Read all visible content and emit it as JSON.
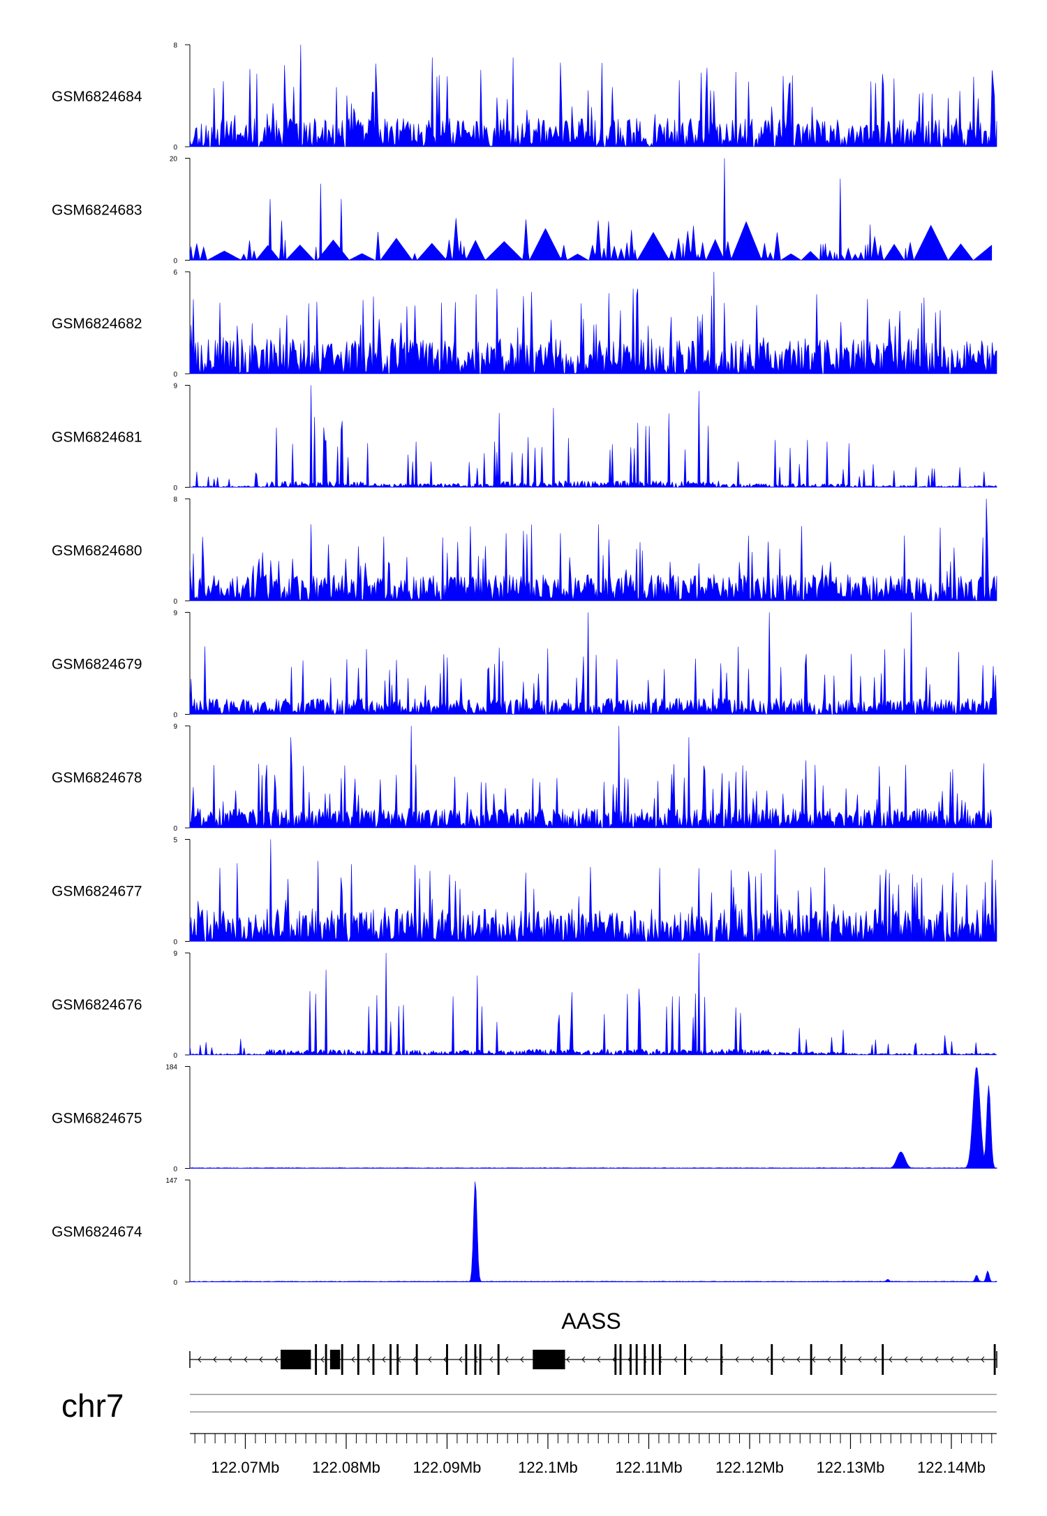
{
  "chart_data": {
    "type": "area",
    "title": "",
    "gene": {
      "name": "AASS",
      "strand": "-",
      "start": 122.0645,
      "end": 122.1445,
      "exons": [
        {
          "start": 122.0735,
          "end": 122.0765
        },
        {
          "start": 122.0769,
          "end": 122.0771
        },
        {
          "start": 122.0779,
          "end": 122.0781
        },
        {
          "start": 122.0784,
          "end": 122.0794
        },
        {
          "start": 122.0795,
          "end": 122.0797
        },
        {
          "start": 122.0811,
          "end": 122.0813
        },
        {
          "start": 122.0826,
          "end": 122.0828
        },
        {
          "start": 122.0843,
          "end": 122.0845
        },
        {
          "start": 122.085,
          "end": 122.0852
        },
        {
          "start": 122.0869,
          "end": 122.0871
        },
        {
          "start": 122.0899,
          "end": 122.0901
        },
        {
          "start": 122.0918,
          "end": 122.092
        },
        {
          "start": 122.0927,
          "end": 122.0929
        },
        {
          "start": 122.0932,
          "end": 122.0934
        },
        {
          "start": 122.095,
          "end": 122.0952
        },
        {
          "start": 122.0985,
          "end": 122.1017
        },
        {
          "start": 122.1066,
          "end": 122.1068
        },
        {
          "start": 122.1071,
          "end": 122.1073
        },
        {
          "start": 122.1081,
          "end": 122.1083
        },
        {
          "start": 122.1087,
          "end": 122.1089
        },
        {
          "start": 122.1095,
          "end": 122.1097
        },
        {
          "start": 122.1103,
          "end": 122.1105
        },
        {
          "start": 122.111,
          "end": 122.1112
        },
        {
          "start": 122.1135,
          "end": 122.1137
        },
        {
          "start": 122.1171,
          "end": 122.1173
        },
        {
          "start": 122.1221,
          "end": 122.1223
        },
        {
          "start": 122.126,
          "end": 122.1262
        },
        {
          "start": 122.129,
          "end": 122.1292
        },
        {
          "start": 122.1331,
          "end": 122.1333
        },
        {
          "start": 122.1442,
          "end": 122.1444
        }
      ]
    },
    "chromosome": "chr7",
    "x_range": [
      122.0645,
      122.1445
    ],
    "x_unit": "Mb",
    "x_ticks": [
      122.07,
      122.08,
      122.09,
      122.1,
      122.11,
      122.12,
      122.13,
      122.14
    ],
    "x_tick_labels": [
      "122.07Mb",
      "122.08Mb",
      "122.09Mb",
      "122.1Mb",
      "122.11Mb",
      "122.12Mb",
      "122.13Mb",
      "122.14Mb"
    ],
    "minor_tick_step": 0.001,
    "color": "#0000ff",
    "tracks": [
      {
        "name": "GSM6824684",
        "ymax": 8,
        "ymin": 0,
        "pattern": "noise",
        "seed": 11,
        "base": 1.4,
        "peak": 5.5,
        "extent": [
          122.0645,
          122.1445
        ],
        "peaks": [
          {
            "x": 122.0755,
            "h": 8
          },
          {
            "x": 122.0705,
            "h": 6.1
          },
          {
            "x": 122.0885,
            "h": 7.0
          },
          {
            "x": 122.0965,
            "h": 7.0
          },
          {
            "x": 122.1325,
            "h": 5.0
          },
          {
            "x": 122.144,
            "h": 6.0
          }
        ]
      },
      {
        "name": "GSM6824683",
        "ymax": 20,
        "ymin": 0,
        "pattern": "sparse",
        "seed": 23,
        "base": 2.2,
        "peak": 7,
        "extent": [
          122.0645,
          122.144
        ],
        "peaks": [
          {
            "x": 122.1175,
            "h": 20
          },
          {
            "x": 122.129,
            "h": 16
          },
          {
            "x": 122.0775,
            "h": 15
          },
          {
            "x": 122.0795,
            "h": 12
          },
          {
            "x": 122.0725,
            "h": 12
          }
        ]
      },
      {
        "name": "GSM6824682",
        "ymax": 6,
        "ymin": 0,
        "pattern": "noise",
        "seed": 37,
        "base": 1.3,
        "peak": 4.3,
        "extent": [
          122.0645,
          122.1445
        ],
        "peaks": [
          {
            "x": 122.1165,
            "h": 6
          },
          {
            "x": 122.1085,
            "h": 5
          },
          {
            "x": 122.095,
            "h": 5
          }
        ]
      },
      {
        "name": "GSM6824681",
        "ymax": 9,
        "ymin": 0,
        "pattern": "regional",
        "seed": 41,
        "base": 0.3,
        "peak": 5,
        "extent": [
          122.0645,
          122.1445
        ],
        "regions": [
          [
            122.0645,
            122.072,
            0.25
          ],
          [
            122.072,
            122.082,
            1.1
          ],
          [
            122.082,
            122.095,
            0.7
          ],
          [
            122.095,
            122.117,
            1.2
          ],
          [
            122.117,
            122.13,
            0.7
          ],
          [
            122.13,
            122.1445,
            0.35
          ]
        ],
        "peaks": [
          {
            "x": 122.0765,
            "h": 9
          },
          {
            "x": 122.115,
            "h": 8.5
          },
          {
            "x": 122.1005,
            "h": 7
          }
        ]
      },
      {
        "name": "GSM6824680",
        "ymax": 8,
        "ymin": 0,
        "pattern": "noise",
        "seed": 53,
        "base": 1.3,
        "peak": 5,
        "extent": [
          122.0645,
          122.1445
        ],
        "peaks": [
          {
            "x": 122.1435,
            "h": 8
          },
          {
            "x": 122.0765,
            "h": 6
          },
          {
            "x": 122.105,
            "h": 6
          }
        ]
      },
      {
        "name": "GSM6824679",
        "ymax": 9,
        "ymin": 0,
        "pattern": "noise",
        "seed": 61,
        "base": 0.9,
        "peak": 5,
        "extent": [
          122.0645,
          122.1445
        ],
        "peaks": [
          {
            "x": 122.122,
            "h": 9
          },
          {
            "x": 122.104,
            "h": 9
          },
          {
            "x": 122.136,
            "h": 9
          },
          {
            "x": 122.066,
            "h": 6
          }
        ]
      },
      {
        "name": "GSM6824678",
        "ymax": 9,
        "ymin": 0,
        "pattern": "noise",
        "seed": 71,
        "base": 1.1,
        "peak": 5,
        "extent": [
          122.0645,
          122.144
        ],
        "peaks": [
          {
            "x": 122.0865,
            "h": 9
          },
          {
            "x": 122.107,
            "h": 9
          },
          {
            "x": 122.0745,
            "h": 8
          },
          {
            "x": 122.114,
            "h": 8
          }
        ]
      },
      {
        "name": "GSM6824677",
        "ymax": 5,
        "ymin": 0,
        "pattern": "noise",
        "seed": 83,
        "base": 1.0,
        "peak": 3.3,
        "extent": [
          122.0645,
          122.1445
        ],
        "peaks": [
          {
            "x": 122.0725,
            "h": 5
          },
          {
            "x": 122.1225,
            "h": 4.5
          },
          {
            "x": 122.144,
            "h": 4
          }
        ]
      },
      {
        "name": "GSM6824676",
        "ymax": 9,
        "ymin": 0,
        "pattern": "regional",
        "seed": 97,
        "base": 0.3,
        "peak": 5,
        "extent": [
          122.0645,
          122.1445
        ],
        "regions": [
          [
            122.0645,
            122.072,
            0.25
          ],
          [
            122.072,
            122.083,
            1.0
          ],
          [
            122.083,
            122.098,
            0.9
          ],
          [
            122.098,
            122.122,
            1.1
          ],
          [
            122.122,
            122.13,
            0.6
          ],
          [
            122.13,
            122.1445,
            0.3
          ]
        ],
        "peaks": [
          {
            "x": 122.084,
            "h": 9
          },
          {
            "x": 122.115,
            "h": 9
          },
          {
            "x": 122.078,
            "h": 7.5
          },
          {
            "x": 122.093,
            "h": 7
          }
        ]
      },
      {
        "name": "GSM6824675",
        "ymax": 184,
        "ymin": 0,
        "pattern": "flat",
        "seed": 101,
        "base": 1.5,
        "peak": 0,
        "extent": [
          122.0645,
          122.1445
        ],
        "blobs": [
          {
            "x": 122.135,
            "h": 30,
            "w": 0.0008
          },
          {
            "x": 122.1425,
            "h": 184,
            "w": 0.0007
          },
          {
            "x": 122.1437,
            "h": 150,
            "w": 0.0004
          }
        ]
      },
      {
        "name": "GSM6824674",
        "ymax": 147,
        "ymin": 0,
        "pattern": "flat",
        "seed": 113,
        "base": 1.2,
        "peak": 0,
        "extent": [
          122.0645,
          122.1445
        ],
        "blobs": [
          {
            "x": 122.0928,
            "h": 147,
            "w": 0.00035
          },
          {
            "x": 122.1425,
            "h": 10,
            "w": 0.0003
          },
          {
            "x": 122.1436,
            "h": 16,
            "w": 0.0003
          },
          {
            "x": 122.1337,
            "h": 4,
            "w": 0.0003
          }
        ]
      }
    ]
  }
}
